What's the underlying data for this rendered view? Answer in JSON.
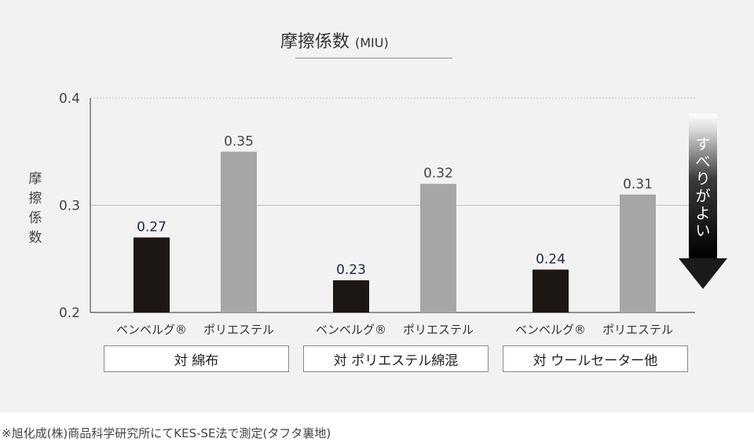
{
  "chart_data": {
    "type": "bar",
    "title": "摩擦係数",
    "title_unit": "(MIU)",
    "ylabel": "摩擦係数",
    "ylim": [
      0.2,
      0.4
    ],
    "yticks": [
      "0.2",
      "0.3",
      "0.4"
    ],
    "grid": true,
    "groups": [
      {
        "label": "対 綿布",
        "bars": [
          {
            "label": "ベンベルグ®",
            "value": 0.27,
            "color": "#1c1615"
          },
          {
            "label": "ポリエステル",
            "value": 0.35,
            "color": "#a7a5a5"
          }
        ]
      },
      {
        "label": "対 ポリエステル綿混",
        "bars": [
          {
            "label": "ベンベルグ®",
            "value": 0.23,
            "color": "#1c1615"
          },
          {
            "label": "ポリエステル",
            "value": 0.32,
            "color": "#a7a5a5"
          }
        ]
      },
      {
        "label": "対 ウールセーター他",
        "bars": [
          {
            "label": "ベンベルグ®",
            "value": 0.24,
            "color": "#1c1615"
          },
          {
            "label": "ポリエステル",
            "value": 0.31,
            "color": "#a7a5a5"
          }
        ]
      }
    ],
    "annotation": "すべりがよい"
  },
  "footnote": "※旭化成(株)商品科学研究所にてKES-SE法で測定(タフタ裏地)"
}
